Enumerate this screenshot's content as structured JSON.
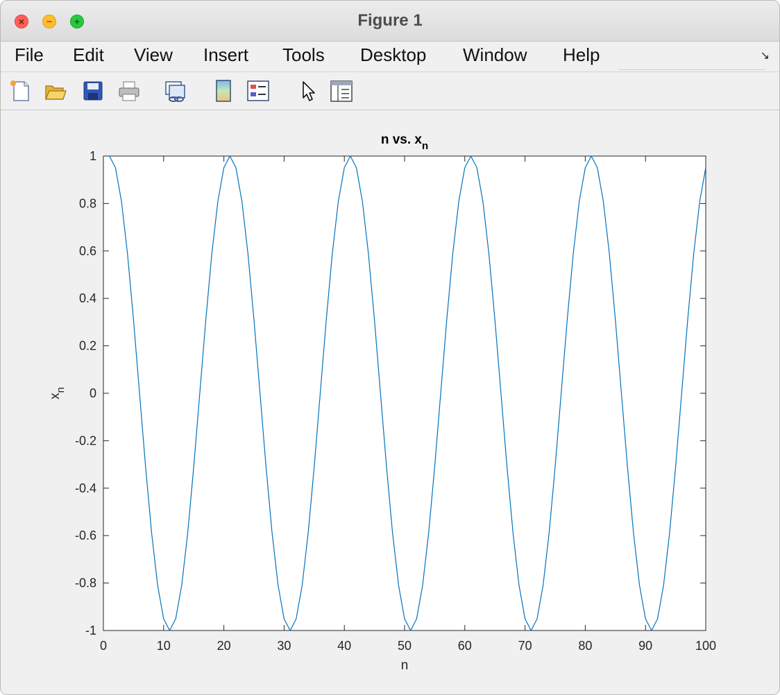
{
  "window": {
    "title": "Figure 1"
  },
  "menubar": {
    "items": [
      "File",
      "Edit",
      "View",
      "Insert",
      "Tools",
      "Desktop",
      "Window",
      "Help"
    ]
  },
  "toolbar": {
    "icons": [
      "new-figure-icon",
      "open-file-icon",
      "save-icon",
      "print-icon",
      "link-plot-icon",
      "insert-colorbar-icon",
      "insert-legend-icon",
      "edit-plot-icon",
      "property-inspector-icon"
    ]
  },
  "colors": {
    "line": "#0072bd",
    "axes_bg": "#ffffff",
    "figure_bg": "#f0f0f0"
  },
  "chart_data": {
    "type": "line",
    "title": "n vs. x",
    "title_subscript": "n",
    "xlabel": "n",
    "ylabel": "x",
    "ylabel_subscript": "n",
    "xlim": [
      0,
      100
    ],
    "ylim": [
      -1,
      1
    ],
    "xticks": [
      0,
      10,
      20,
      30,
      40,
      50,
      60,
      70,
      80,
      90,
      100
    ],
    "yticks": [
      -1,
      -0.8,
      -0.6,
      -0.4,
      -0.2,
      0,
      0.2,
      0.4,
      0.6,
      0.8,
      1
    ],
    "xtick_labels": [
      "0",
      "10",
      "20",
      "30",
      "40",
      "50",
      "60",
      "70",
      "80",
      "90",
      "100"
    ],
    "ytick_labels": [
      "-1",
      "-0.8",
      "-0.6",
      "-0.4",
      "-0.2",
      "0",
      "0.2",
      "0.4",
      "0.6",
      "0.8",
      "1"
    ],
    "grid": false,
    "series": [
      {
        "x": [
          1,
          2,
          3,
          4,
          5,
          6,
          7,
          8,
          9,
          10,
          11,
          12,
          13,
          14,
          15,
          16,
          17,
          18,
          19,
          20,
          21,
          22,
          23,
          24,
          25,
          26,
          27,
          28,
          29,
          30,
          31,
          32,
          33,
          34,
          35,
          36,
          37,
          38,
          39,
          40,
          41,
          42,
          43,
          44,
          45,
          46,
          47,
          48,
          49,
          50,
          51,
          52,
          53,
          54,
          55,
          56,
          57,
          58,
          59,
          60,
          61,
          62,
          63,
          64,
          65,
          66,
          67,
          68,
          69,
          70,
          71,
          72,
          73,
          74,
          75,
          76,
          77,
          78,
          79,
          80,
          81,
          82,
          83,
          84,
          85,
          86,
          87,
          88,
          89,
          90,
          91,
          92,
          93,
          94,
          95,
          96,
          97,
          98,
          99,
          100
        ],
        "y": [
          1,
          0.951,
          0.809,
          0.588,
          0.309,
          0,
          -0.309,
          -0.588,
          -0.809,
          -0.951,
          -1,
          -0.951,
          -0.809,
          -0.588,
          -0.309,
          0,
          0.309,
          0.588,
          0.809,
          0.951,
          1,
          0.951,
          0.809,
          0.588,
          0.309,
          0,
          -0.309,
          -0.588,
          -0.809,
          -0.951,
          -1,
          -0.951,
          -0.809,
          -0.588,
          -0.309,
          0,
          0.309,
          0.588,
          0.809,
          0.951,
          1,
          0.951,
          0.809,
          0.588,
          0.309,
          0,
          -0.309,
          -0.588,
          -0.809,
          -0.951,
          -1,
          -0.951,
          -0.809,
          -0.588,
          -0.309,
          0,
          0.309,
          0.588,
          0.809,
          0.951,
          1,
          0.951,
          0.809,
          0.588,
          0.309,
          0,
          -0.309,
          -0.588,
          -0.809,
          -0.951,
          -1,
          -0.951,
          -0.809,
          -0.588,
          -0.309,
          0,
          0.309,
          0.588,
          0.809,
          0.951,
          1,
          0.951,
          0.809,
          0.588,
          0.309,
          0,
          -0.309,
          -0.588,
          -0.809,
          -0.951,
          -1,
          -0.951,
          -0.809,
          -0.588,
          -0.309,
          0,
          0.309,
          0.588,
          0.809,
          0.951
        ]
      }
    ]
  }
}
